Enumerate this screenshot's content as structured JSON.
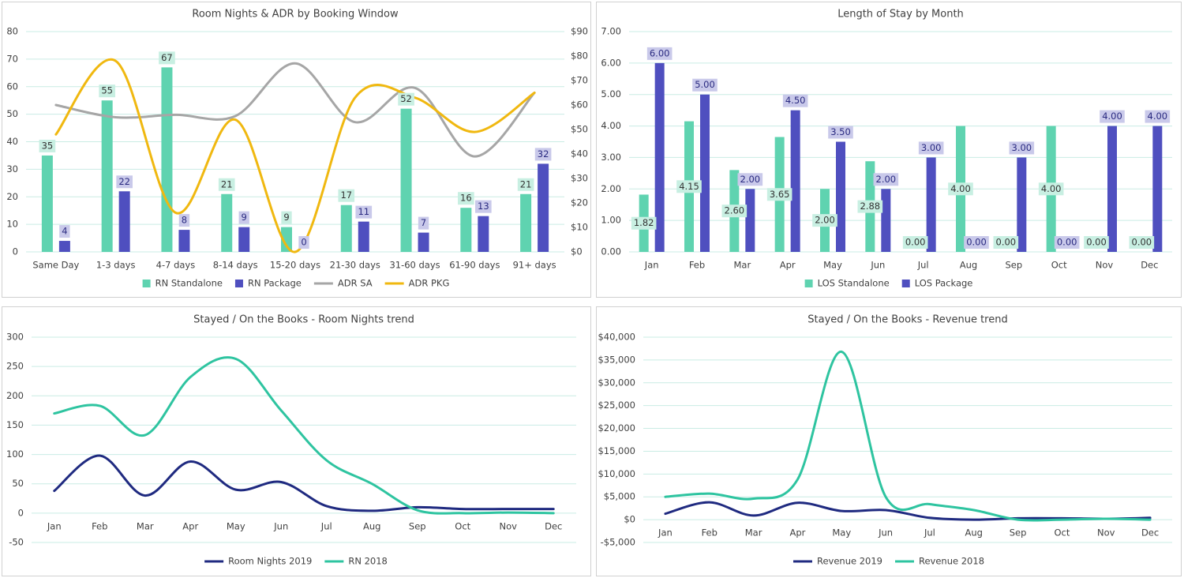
{
  "chart_data": [
    {
      "type": "combo",
      "title": "Room Nights & ADR by Booking Window",
      "categories": [
        "Same Day",
        "1-3 days",
        "4-7 days",
        "8-14 days",
        "15-20 days",
        "21-30 days",
        "31-60 days",
        "61-90 days",
        "91+ days"
      ],
      "ylim": [
        0,
        80
      ],
      "yticks": [
        0,
        10,
        20,
        30,
        40,
        50,
        60,
        70,
        80
      ],
      "y2lim": [
        0,
        90
      ],
      "y2ticks": [
        {
          "value": 0,
          "label": "$0"
        },
        {
          "value": 10,
          "label": "$10"
        },
        {
          "value": 20,
          "label": "$20"
        },
        {
          "value": 30,
          "label": "$30"
        },
        {
          "value": 40,
          "label": "$40"
        },
        {
          "value": 50,
          "label": "$50"
        },
        {
          "value": 60,
          "label": "$60"
        },
        {
          "value": 70,
          "label": "$70"
        },
        {
          "value": 80,
          "label": "$80"
        },
        {
          "value": 90,
          "label": "$90"
        }
      ],
      "grid": true,
      "smooth": true,
      "legend": "bottom",
      "series": [
        {
          "name": "RN Standalone",
          "type": "bar",
          "color": "#5fd3b0",
          "values": [
            35,
            55,
            67,
            21,
            9,
            17,
            52,
            16,
            21
          ]
        },
        {
          "name": "RN Package",
          "type": "bar",
          "color": "#4f4fbf",
          "values": [
            4,
            22,
            8,
            9,
            0,
            11,
            7,
            13,
            32
          ]
        },
        {
          "name": "ADR SA",
          "type": "line",
          "axis": "y2",
          "color": "#a6a6a6",
          "values": [
            60,
            55,
            56,
            55.5,
            77,
            53,
            67,
            39,
            65
          ]
        },
        {
          "name": "ADR PKG",
          "type": "line",
          "axis": "y2",
          "color": "#f0b810",
          "values": [
            48,
            78,
            16,
            54,
            0,
            63,
            63,
            49,
            65
          ]
        }
      ]
    },
    {
      "type": "bar",
      "title": "Length of Stay by Month",
      "categories": [
        "Jan",
        "Feb",
        "Mar",
        "Apr",
        "May",
        "Jun",
        "Jul",
        "Aug",
        "Sep",
        "Oct",
        "Nov",
        "Dec"
      ],
      "ylim": [
        0,
        7
      ],
      "yticks": [
        {
          "value": 0,
          "label": "0.00"
        },
        {
          "value": 1,
          "label": "1.00"
        },
        {
          "value": 2,
          "label": "2.00"
        },
        {
          "value": 3,
          "label": "3.00"
        },
        {
          "value": 4,
          "label": "4.00"
        },
        {
          "value": 5,
          "label": "5.00"
        },
        {
          "value": 6,
          "label": "6.00"
        },
        {
          "value": 7,
          "label": "7.00"
        }
      ],
      "grid": true,
      "legend": "bottom",
      "series": [
        {
          "name": "LOS Standalone",
          "color": "#5fd3b0",
          "values": [
            1.82,
            4.15,
            2.6,
            3.65,
            2,
            2.88,
            0,
            4,
            0,
            4,
            0,
            0
          ],
          "value_labels": [
            "1.82",
            "4.15",
            "2.60",
            "3.65",
            "2.00",
            "2.88",
            "0.00",
            "4.00",
            "0.00",
            "4.00",
            "0.00",
            "0.00"
          ]
        },
        {
          "name": "LOS Package",
          "color": "#4f4fbf",
          "values": [
            6,
            5,
            2,
            4.5,
            3.5,
            2,
            3,
            0,
            3,
            0,
            4,
            4
          ],
          "value_labels": [
            "6.00",
            "5.00",
            "2.00",
            "4.50",
            "3.50",
            "2.00",
            "3.00",
            "0.00",
            "3.00",
            "0.00",
            "4.00",
            "4.00"
          ]
        }
      ]
    },
    {
      "type": "line",
      "title": "Stayed / On the Books - Room Nights trend",
      "categories": [
        "Jan",
        "Feb",
        "Mar",
        "Apr",
        "May",
        "Jun",
        "Jul",
        "Aug",
        "Sep",
        "Oct",
        "Nov",
        "Dec"
      ],
      "ylim": [
        -50,
        300
      ],
      "yticks": [
        -50,
        0,
        50,
        100,
        150,
        200,
        250,
        300
      ],
      "grid": true,
      "smooth": true,
      "legend": "bottom",
      "series": [
        {
          "name": "Room Nights 2019",
          "color": "#1f2a80",
          "values": [
            38,
            98,
            30,
            88,
            40,
            53,
            12,
            4,
            10,
            7,
            7,
            7
          ]
        },
        {
          "name": "RN 2018",
          "color": "#2ec4a0",
          "values": [
            170,
            183,
            133,
            232,
            263,
            175,
            90,
            50,
            5,
            0,
            1,
            0
          ]
        }
      ]
    },
    {
      "type": "line",
      "title": "Stayed / On the Books - Revenue trend",
      "categories": [
        "Jan",
        "Feb",
        "Mar",
        "Apr",
        "May",
        "Jun",
        "Jul",
        "Aug",
        "Sep",
        "Oct",
        "Nov",
        "Dec"
      ],
      "ylim": [
        -5000,
        40000
      ],
      "yticks": [
        {
          "value": -5000,
          "label": "-$5,000"
        },
        {
          "value": 0,
          "label": "$0"
        },
        {
          "value": 5000,
          "label": "$5,000"
        },
        {
          "value": 10000,
          "label": "$10,000"
        },
        {
          "value": 15000,
          "label": "$15,000"
        },
        {
          "value": 20000,
          "label": "$20,000"
        },
        {
          "value": 25000,
          "label": "$25,000"
        },
        {
          "value": 30000,
          "label": "$30,000"
        },
        {
          "value": 35000,
          "label": "$35,000"
        },
        {
          "value": 40000,
          "label": "$40,000"
        }
      ],
      "grid": true,
      "smooth": true,
      "legend": "bottom",
      "series": [
        {
          "name": "Revenue 2019",
          "color": "#1f2a80",
          "values": [
            1300,
            3800,
            900,
            3700,
            1900,
            2100,
            400,
            0,
            300,
            300,
            200,
            400
          ]
        },
        {
          "name": "Revenue 2018",
          "color": "#2ec4a0",
          "values": [
            5000,
            5700,
            4600,
            8800,
            36800,
            5000,
            3400,
            2100,
            0,
            0,
            200,
            0
          ]
        }
      ]
    }
  ]
}
